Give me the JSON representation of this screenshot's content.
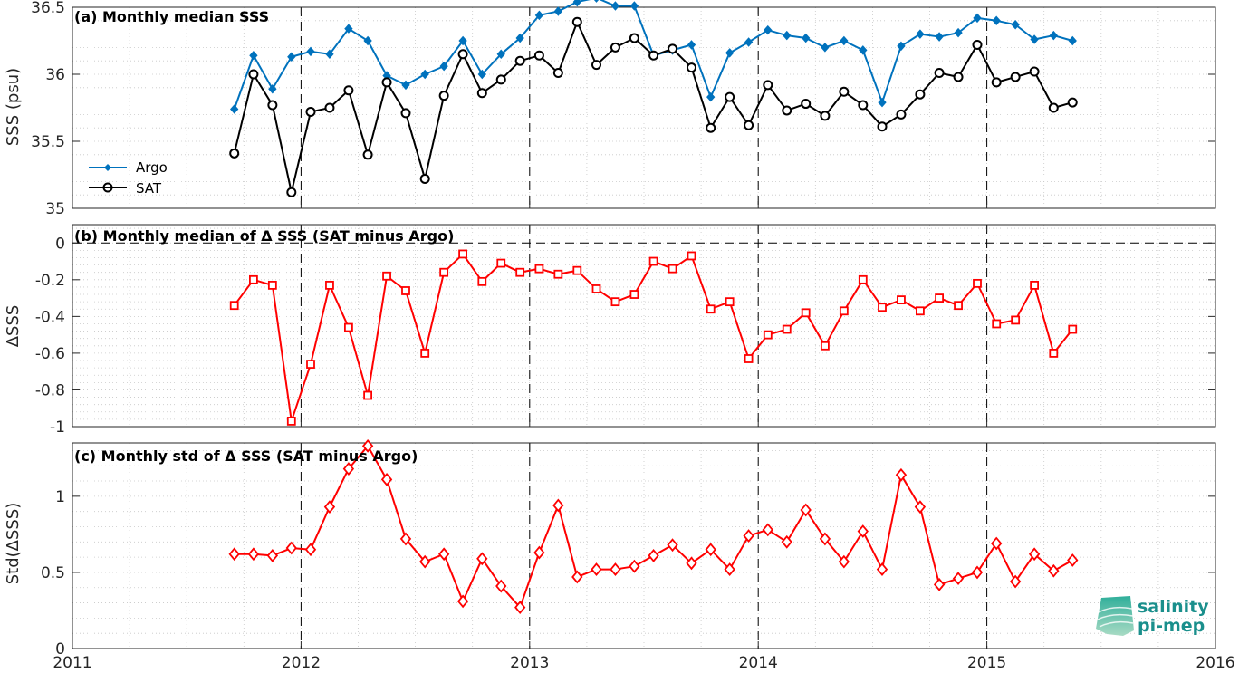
{
  "chart_data": [
    {
      "type": "line",
      "title": "(a) Monthly median SSS",
      "ylabel": "SSS (psu)",
      "ylim": [
        35,
        36.5
      ],
      "yticks": [
        35,
        35.5,
        36,
        36.5
      ],
      "ytick_labels": [
        "35",
        "35.5",
        "36",
        "36.5"
      ],
      "xlim": [
        2011,
        2016
      ],
      "grid": true,
      "legend_position": "left-bottom",
      "x": [
        2011.708,
        2011.792,
        2011.875,
        2011.958,
        2012.042,
        2012.125,
        2012.208,
        2012.292,
        2012.375,
        2012.458,
        2012.542,
        2012.625,
        2012.708,
        2012.792,
        2012.875,
        2012.958,
        2013.042,
        2013.125,
        2013.208,
        2013.292,
        2013.375,
        2013.458,
        2013.542,
        2013.625,
        2013.708,
        2013.792,
        2013.875,
        2013.958,
        2014.042,
        2014.125,
        2014.208,
        2014.292,
        2014.375,
        2014.458,
        2014.542,
        2014.625,
        2014.708,
        2014.792,
        2014.875,
        2014.958,
        2015.042,
        2015.125,
        2015.208,
        2015.292,
        2015.375
      ],
      "series": [
        {
          "name": "Argo",
          "color": "#0072bd",
          "marker": "diamond",
          "values": [
            35.74,
            36.14,
            35.89,
            36.13,
            36.17,
            36.15,
            36.34,
            36.25,
            35.99,
            35.92,
            36.0,
            36.06,
            36.25,
            36.0,
            36.15,
            36.27,
            36.44,
            36.47,
            36.54,
            36.57,
            36.51,
            36.51,
            36.14,
            36.18,
            36.22,
            35.83,
            36.16,
            36.24,
            36.33,
            36.29,
            36.27,
            36.2,
            36.25,
            36.18,
            35.79,
            36.21,
            36.3,
            36.28,
            36.31,
            36.42,
            36.4,
            36.37,
            36.26,
            36.29,
            36.25
          ]
        },
        {
          "name": "SAT",
          "color": "#000000",
          "marker": "circle",
          "values": [
            35.41,
            36.0,
            35.77,
            35.12,
            35.72,
            35.75,
            35.88,
            35.4,
            35.94,
            35.71,
            35.22,
            35.84,
            36.15,
            35.86,
            35.96,
            36.1,
            36.14,
            36.01,
            36.39,
            36.07,
            36.2,
            36.27,
            36.14,
            36.19,
            36.05,
            35.6,
            35.83,
            35.62,
            35.92,
            35.73,
            35.78,
            35.69,
            35.87,
            35.77,
            35.61,
            35.7,
            35.85,
            36.01,
            35.98,
            36.22,
            35.94,
            35.98,
            36.02,
            35.75,
            35.79
          ]
        }
      ]
    },
    {
      "type": "line",
      "title": "(b) Monthly median of Δ SSS (SAT minus Argo)",
      "ylabel": "ΔSSS",
      "ylim": [
        -1,
        0.1
      ],
      "yticks": [
        -1,
        -0.8,
        -0.6,
        -0.4,
        -0.2,
        0
      ],
      "ytick_labels": [
        "-1",
        "-0.8",
        "-0.6",
        "-0.4",
        "-0.2",
        "0"
      ],
      "xlim": [
        2011,
        2016
      ],
      "grid": true,
      "reference_line": 0,
      "x": [
        2011.708,
        2011.792,
        2011.875,
        2011.958,
        2012.042,
        2012.125,
        2012.208,
        2012.292,
        2012.375,
        2012.458,
        2012.542,
        2012.625,
        2012.708,
        2012.792,
        2012.875,
        2012.958,
        2013.042,
        2013.125,
        2013.208,
        2013.292,
        2013.375,
        2013.458,
        2013.542,
        2013.625,
        2013.708,
        2013.792,
        2013.875,
        2013.958,
        2014.042,
        2014.125,
        2014.208,
        2014.292,
        2014.375,
        2014.458,
        2014.542,
        2014.625,
        2014.708,
        2014.792,
        2014.875,
        2014.958,
        2015.042,
        2015.125,
        2015.208,
        2015.292,
        2015.375
      ],
      "series": [
        {
          "name": "",
          "color": "#ff0000",
          "marker": "square",
          "values": [
            -0.34,
            -0.2,
            -0.23,
            -0.97,
            -0.66,
            -0.23,
            -0.46,
            -0.83,
            -0.18,
            -0.26,
            -0.6,
            -0.16,
            -0.06,
            -0.21,
            -0.11,
            -0.16,
            -0.14,
            -0.17,
            -0.15,
            -0.25,
            -0.32,
            -0.28,
            -0.1,
            -0.14,
            -0.07,
            -0.36,
            -0.32,
            -0.63,
            -0.5,
            -0.47,
            -0.38,
            -0.56,
            -0.37,
            -0.2,
            -0.35,
            -0.31,
            -0.37,
            -0.3,
            -0.34,
            -0.22,
            -0.44,
            -0.42,
            -0.23,
            -0.6,
            -0.47
          ]
        }
      ]
    },
    {
      "type": "line",
      "title": "(c) Monthly std of Δ SSS (SAT minus Argo)",
      "ylabel": "Std(ΔSSS)",
      "ylim": [
        0,
        1.35
      ],
      "yticks": [
        0,
        0.5,
        1
      ],
      "ytick_labels": [
        "0",
        "0.5",
        "1"
      ],
      "xlim": [
        2011,
        2016
      ],
      "xticks": [
        2011,
        2012,
        2013,
        2014,
        2015,
        2016
      ],
      "xtick_labels": [
        "2011",
        "2012",
        "2013",
        "2014",
        "2015",
        "2016"
      ],
      "grid": true,
      "x": [
        2011.708,
        2011.792,
        2011.875,
        2011.958,
        2012.042,
        2012.125,
        2012.208,
        2012.292,
        2012.375,
        2012.458,
        2012.542,
        2012.625,
        2012.708,
        2012.792,
        2012.875,
        2012.958,
        2013.042,
        2013.125,
        2013.208,
        2013.292,
        2013.375,
        2013.458,
        2013.542,
        2013.625,
        2013.708,
        2013.792,
        2013.875,
        2013.958,
        2014.042,
        2014.125,
        2014.208,
        2014.292,
        2014.375,
        2014.458,
        2014.542,
        2014.625,
        2014.708,
        2014.792,
        2014.875,
        2014.958,
        2015.042,
        2015.125,
        2015.208,
        2015.292,
        2015.375
      ],
      "series": [
        {
          "name": "",
          "color": "#ff0000",
          "marker": "diamond",
          "values": [
            0.62,
            0.62,
            0.61,
            0.66,
            0.65,
            0.93,
            1.18,
            1.33,
            1.11,
            0.72,
            0.57,
            0.62,
            0.31,
            0.59,
            0.41,
            0.27,
            0.63,
            0.94,
            0.47,
            0.52,
            0.52,
            0.54,
            0.61,
            0.68,
            0.56,
            0.65,
            0.52,
            0.74,
            0.78,
            0.7,
            0.91,
            0.72,
            0.57,
            0.77,
            0.52,
            1.14,
            0.93,
            0.42,
            0.46,
            0.5,
            0.69,
            0.44,
            0.62,
            0.51,
            0.58
          ]
        }
      ]
    }
  ],
  "logo": {
    "line1": "salinity",
    "line2": "pi-mep",
    "color": "#1a8f8c"
  }
}
